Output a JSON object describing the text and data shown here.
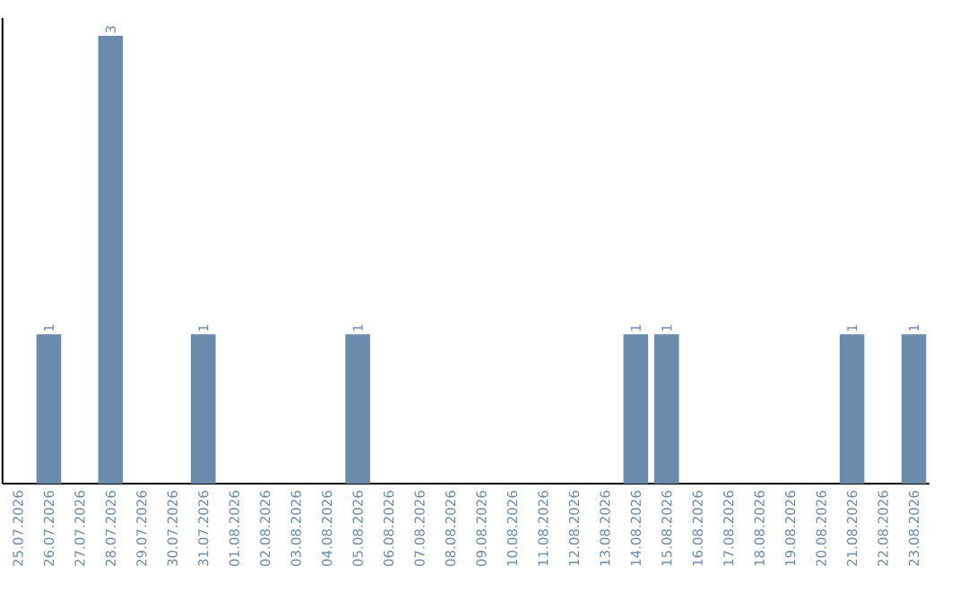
{
  "chart_data": {
    "type": "bar",
    "categories": [
      "25.07.2026",
      "26.07.2026",
      "27.07.2026",
      "28.07.2026",
      "29.07.2026",
      "30.07.2026",
      "31.07.2026",
      "01.08.2026",
      "02.08.2026",
      "03.08.2026",
      "04.08.2026",
      "05.08.2026",
      "06.08.2026",
      "07.08.2026",
      "08.08.2026",
      "09.08.2026",
      "10.08.2026",
      "11.08.2026",
      "12.08.2026",
      "13.08.2026",
      "14.08.2026",
      "15.08.2026",
      "16.08.2026",
      "17.08.2026",
      "18.08.2026",
      "19.08.2026",
      "20.08.2026",
      "21.08.2026",
      "22.08.2026",
      "23.08.2026"
    ],
    "values": [
      0,
      1,
      0,
      3,
      0,
      0,
      1,
      0,
      0,
      0,
      0,
      1,
      0,
      0,
      0,
      0,
      0,
      0,
      0,
      0,
      1,
      1,
      0,
      0,
      0,
      0,
      0,
      1,
      0,
      1
    ],
    "value_labels": [
      null,
      "1",
      null,
      "3",
      null,
      null,
      "1",
      null,
      null,
      null,
      null,
      "1",
      null,
      null,
      null,
      null,
      null,
      null,
      null,
      null,
      "1",
      "1",
      null,
      null,
      null,
      null,
      null,
      "1",
      null,
      "1"
    ],
    "color": "#6a8bab",
    "grid": false
  }
}
